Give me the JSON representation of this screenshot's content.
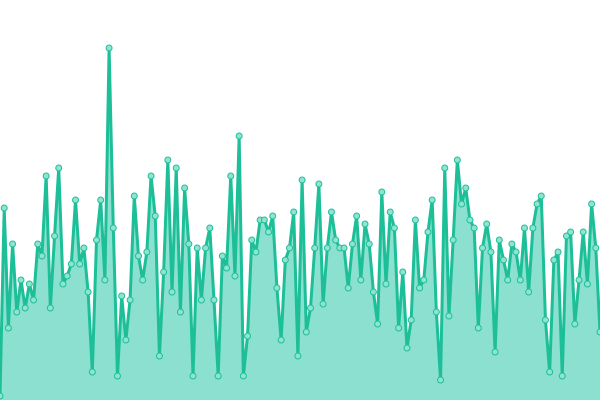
{
  "chart_data": {
    "type": "area",
    "title": "",
    "xlabel": "",
    "ylabel": "",
    "ylim": [
      0,
      100
    ],
    "grid": false,
    "legend": "none",
    "colors": {
      "line": "#1dbf98",
      "fill": "#8ce0cf",
      "point_fill": "#8fe3d1",
      "point_stroke": "#1dbf98"
    },
    "values": [
      1,
      48,
      18,
      39,
      22,
      30,
      23,
      29,
      25,
      39,
      36,
      56,
      23,
      41,
      58,
      29,
      31,
      34,
      50,
      34,
      38,
      27,
      7,
      40,
      50,
      30,
      88,
      43,
      6,
      26,
      15,
      25,
      51,
      36,
      30,
      37,
      56,
      46,
      11,
      32,
      60,
      27,
      58,
      22,
      53,
      39,
      6,
      38,
      25,
      38,
      43,
      25,
      6,
      36,
      33,
      56,
      31,
      66,
      6,
      16,
      40,
      37,
      45,
      45,
      42,
      46,
      28,
      15,
      35,
      38,
      47,
      11,
      55,
      17,
      23,
      38,
      54,
      24,
      38,
      47,
      40,
      38,
      38,
      28,
      39,
      46,
      30,
      44,
      39,
      27,
      19,
      52,
      29,
      47,
      43,
      18,
      32,
      13,
      20,
      45,
      28,
      30,
      42,
      50,
      22,
      5,
      58,
      21,
      40,
      60,
      49,
      53,
      45,
      43,
      18,
      38,
      44,
      37,
      12,
      40,
      35,
      30,
      39,
      37,
      30,
      43,
      27,
      43,
      49,
      51,
      20,
      7,
      35,
      37,
      6,
      41,
      42,
      19,
      30,
      42,
      29,
      49,
      38,
      17
    ]
  }
}
